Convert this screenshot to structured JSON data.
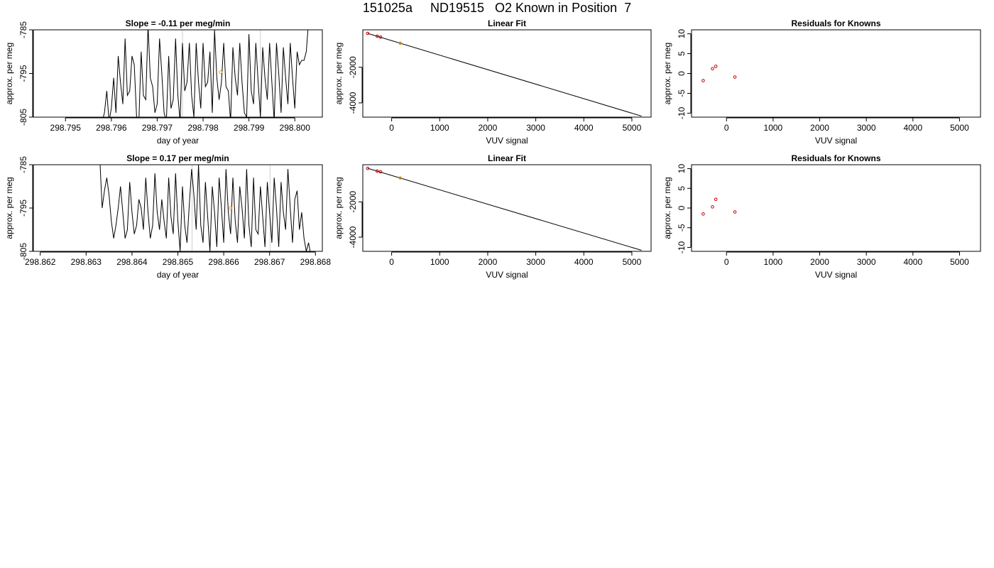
{
  "page": {
    "title": "151025a     ND19515   O2 Known in Position  7"
  },
  "chart_data": [
    {
      "type": "line",
      "title": "Slope =  -0.11  per meg/min",
      "xlabel": "day of year",
      "ylabel": "approx. per meg",
      "xlim": [
        298.7943,
        298.8006
      ],
      "ylim": [
        -805,
        -785
      ],
      "xticks": [
        298.795,
        298.796,
        298.797,
        298.798,
        298.799,
        298.8
      ],
      "xtick_labels": [
        "298.795",
        "298.796",
        "298.797",
        "298.798",
        "298.799",
        "298.800"
      ],
      "yticks": [
        -785,
        -795,
        -805
      ],
      "ytick_labels": [
        "-785",
        "-795",
        "-805"
      ],
      "vlines": [
        298.79755,
        298.79925
      ],
      "marker": {
        "x": 298.79838,
        "y": -794.7,
        "color": "#ffa500"
      },
      "series": [
        {
          "x": [
            298.7958,
            298.79585,
            298.7959,
            298.79595,
            298.796,
            298.79605,
            298.7961,
            298.79615,
            298.7962,
            298.79625,
            298.7963,
            298.79635,
            298.7964,
            298.79645,
            298.7965,
            298.79655,
            298.7966,
            298.79665,
            298.7967,
            298.79675,
            298.7968,
            298.79685,
            298.7969,
            298.79695,
            298.797,
            298.79705,
            298.7971,
            298.79715,
            298.7972,
            298.79725,
            298.7973,
            298.79735,
            298.7974,
            298.79745,
            298.7975,
            298.79755,
            298.7976,
            298.79765,
            298.7977,
            298.79775,
            298.7978,
            298.79785,
            298.7979,
            298.79795,
            298.798,
            298.79805,
            298.7981,
            298.79815,
            298.7982,
            298.79825,
            298.7983,
            298.79835,
            298.7984,
            298.79845,
            298.7985,
            298.79855,
            298.7986,
            298.79865,
            298.7987,
            298.79875,
            298.7988,
            298.79885,
            298.7989,
            298.79895,
            298.799,
            298.79905,
            298.7991,
            298.79915,
            298.7992,
            298.79925,
            298.7993,
            298.79935,
            298.7994,
            298.79945,
            298.7995,
            298.79955,
            298.7996,
            298.79965,
            298.7997,
            298.79975,
            298.7998,
            298.79985,
            298.7999,
            298.79995,
            298.8,
            298.80005,
            298.8001,
            298.80015,
            298.8002,
            298.80025,
            298.8003
          ],
          "y": [
            -806,
            -804,
            -799,
            -806,
            -803,
            -796,
            -804,
            -791,
            -797,
            -802,
            -787,
            -800,
            -799,
            -791,
            -793,
            -805,
            -806,
            -790,
            -800,
            -801,
            -784,
            -796,
            -798,
            -804,
            -802,
            -787,
            -795,
            -804,
            -806,
            -791,
            -803,
            -801,
            -787,
            -800,
            -806,
            -788,
            -799,
            -797,
            -788,
            -800,
            -805,
            -788,
            -797,
            -803,
            -788,
            -798,
            -797,
            -790,
            -804,
            -785,
            -796,
            -801,
            -797,
            -788,
            -798,
            -799,
            -806,
            -789,
            -796,
            -800,
            -788,
            -797,
            -804,
            -805,
            -786,
            -799,
            -802,
            -788,
            -797,
            -805,
            -789,
            -796,
            -801,
            -788,
            -797,
            -806,
            -788,
            -795,
            -804,
            -789,
            -796,
            -802,
            -788,
            -796,
            -803,
            -790,
            -793,
            -792,
            -792,
            -790,
            -783
          ]
        }
      ]
    },
    {
      "type": "scatter",
      "title": "Linear Fit",
      "xlabel": "VUV signal",
      "ylabel": "approx. per meg",
      "xlim": [
        -600,
        5400
      ],
      "ylim": [
        -4800,
        100
      ],
      "xticks": [
        0,
        1000,
        2000,
        3000,
        4000,
        5000
      ],
      "xtick_labels": [
        "0",
        "1000",
        "2000",
        "3000",
        "4000",
        "5000"
      ],
      "yticks": [
        -2000,
        -4000
      ],
      "ytick_labels": [
        "-2000",
        "-4000"
      ],
      "fit_line": {
        "x": [
          -500,
          5200
        ],
        "y": [
          -100,
          -4740
        ]
      },
      "points": [
        {
          "x": -500,
          "y": -100,
          "color": "#cc0000"
        },
        {
          "x": -300,
          "y": -260,
          "color": "#cc0000"
        },
        {
          "x": -230,
          "y": -310,
          "color": "#cc0000"
        },
        {
          "x": 180,
          "y": -650,
          "color": "#cc0000"
        },
        {
          "x": 180,
          "y": -650,
          "color": "#ffa500"
        }
      ]
    },
    {
      "type": "scatter",
      "title": "Residuals for Knowns",
      "xlabel": "VUV signal",
      "ylabel": "approx. per meg",
      "xlim": [
        -750,
        5450
      ],
      "ylim": [
        -11,
        11
      ],
      "xticks": [
        0,
        1000,
        2000,
        3000,
        4000,
        5000
      ],
      "xtick_labels": [
        "0",
        "1000",
        "2000",
        "3000",
        "4000",
        "5000"
      ],
      "yticks": [
        10,
        5,
        0,
        -5,
        -10
      ],
      "ytick_labels": [
        "10",
        "5",
        "0",
        "-5",
        "-10"
      ],
      "points": [
        {
          "x": -500,
          "y": -1.8,
          "color": "#cc0000"
        },
        {
          "x": -300,
          "y": 1.2,
          "color": "#cc0000"
        },
        {
          "x": -230,
          "y": 1.8,
          "color": "#cc0000"
        },
        {
          "x": 180,
          "y": -0.9,
          "color": "#cc0000"
        }
      ]
    },
    {
      "type": "line",
      "title": "Slope =  0.17  per meg/min",
      "xlabel": "day of year",
      "ylabel": "approx. per meg",
      "xlim": [
        298.86185,
        298.86815
      ],
      "ylim": [
        -805,
        -785
      ],
      "xticks": [
        298.862,
        298.863,
        298.864,
        298.865,
        298.866,
        298.867,
        298.868
      ],
      "xtick_labels": [
        "298.862",
        "298.863",
        "298.864",
        "298.865",
        "298.866",
        "298.867",
        "298.868"
      ],
      "yticks": [
        -785,
        -795,
        -805
      ],
      "ytick_labels": [
        "-785",
        "-795",
        "-805"
      ],
      "vlines": [
        298.86531,
        298.86701
      ],
      "marker": {
        "x": 298.86615,
        "y": -795,
        "color": "#ffa500"
      },
      "series": [
        {
          "x": [
            298.8633,
            298.86335,
            298.8634,
            298.86345,
            298.8635,
            298.86355,
            298.8636,
            298.86365,
            298.8637,
            298.86375,
            298.8638,
            298.86385,
            298.8639,
            298.86395,
            298.864,
            298.86405,
            298.8641,
            298.86415,
            298.8642,
            298.86425,
            298.8643,
            298.86435,
            298.8644,
            298.86445,
            298.8645,
            298.86455,
            298.8646,
            298.86465,
            298.8647,
            298.86475,
            298.8648,
            298.86485,
            298.8649,
            298.86495,
            298.865,
            298.86505,
            298.8651,
            298.86515,
            298.8652,
            298.86525,
            298.8653,
            298.86535,
            298.8654,
            298.86545,
            298.8655,
            298.86555,
            298.8656,
            298.86565,
            298.8657,
            298.86575,
            298.8658,
            298.86585,
            298.8659,
            298.86595,
            298.866,
            298.86605,
            298.8661,
            298.86615,
            298.8662,
            298.86625,
            298.8663,
            298.86635,
            298.8664,
            298.86645,
            298.8665,
            298.86655,
            298.8666,
            298.86665,
            298.8667,
            298.86675,
            298.8668,
            298.86685,
            298.8669,
            298.86695,
            298.867,
            298.86705,
            298.8671,
            298.86715,
            298.8672,
            298.86725,
            298.8673,
            298.86735,
            298.8674,
            298.86745,
            298.8675,
            298.86755,
            298.8676,
            298.86765,
            298.8677,
            298.86775,
            298.8678,
            298.86785,
            298.8679
          ],
          "y": [
            -784,
            -795,
            -791,
            -788,
            -792,
            -798,
            -802,
            -799,
            -795,
            -790,
            -796,
            -802,
            -800,
            -789,
            -796,
            -801,
            -799,
            -793,
            -795,
            -800,
            -788,
            -796,
            -802,
            -799,
            -787,
            -796,
            -800,
            -793,
            -798,
            -802,
            -788,
            -797,
            -801,
            -787,
            -798,
            -805,
            -790,
            -799,
            -803,
            -794,
            -786,
            -792,
            -800,
            -785,
            -799,
            -803,
            -789,
            -797,
            -805,
            -790,
            -796,
            -804,
            -788,
            -795,
            -803,
            -786,
            -796,
            -801,
            -788,
            -798,
            -803,
            -790,
            -795,
            -802,
            -786,
            -799,
            -804,
            -788,
            -800,
            -801,
            -790,
            -797,
            -804,
            -789,
            -796,
            -803,
            -788,
            -795,
            -804,
            -789,
            -796,
            -800,
            -786,
            -795,
            -803,
            -793,
            -791,
            -800,
            -796,
            -802,
            -805,
            -803,
            -806
          ]
        }
      ]
    },
    {
      "type": "scatter",
      "title": "Linear Fit",
      "xlabel": "VUV signal",
      "ylabel": "approx. per meg",
      "xlim": [
        -600,
        5400
      ],
      "ylim": [
        -4800,
        100
      ],
      "xticks": [
        0,
        1000,
        2000,
        3000,
        4000,
        5000
      ],
      "xtick_labels": [
        "0",
        "1000",
        "2000",
        "3000",
        "4000",
        "5000"
      ],
      "yticks": [
        -2000,
        -4000
      ],
      "ytick_labels": [
        "-2000",
        "-4000"
      ],
      "fit_line": {
        "x": [
          -500,
          5200
        ],
        "y": [
          -100,
          -4740
        ]
      },
      "points": [
        {
          "x": -500,
          "y": -110,
          "color": "#cc0000"
        },
        {
          "x": -300,
          "y": -260,
          "color": "#cc0000"
        },
        {
          "x": -230,
          "y": -300,
          "color": "#cc0000"
        },
        {
          "x": 180,
          "y": -650,
          "color": "#cc0000"
        },
        {
          "x": 180,
          "y": -650,
          "color": "#ffa500"
        }
      ]
    },
    {
      "type": "scatter",
      "title": "Residuals for Knowns",
      "xlabel": "VUV signal",
      "ylabel": "approx. per meg",
      "xlim": [
        -750,
        5450
      ],
      "ylim": [
        -11,
        11
      ],
      "xticks": [
        0,
        1000,
        2000,
        3000,
        4000,
        5000
      ],
      "xtick_labels": [
        "0",
        "1000",
        "2000",
        "3000",
        "4000",
        "5000"
      ],
      "yticks": [
        10,
        5,
        0,
        -5,
        -10
      ],
      "ytick_labels": [
        "10",
        "5",
        "0",
        "-5",
        "-10"
      ],
      "points": [
        {
          "x": -500,
          "y": -1.5,
          "color": "#cc0000"
        },
        {
          "x": -300,
          "y": 0.3,
          "color": "#cc0000"
        },
        {
          "x": -230,
          "y": 2.2,
          "color": "#cc0000"
        },
        {
          "x": 180,
          "y": -1.0,
          "color": "#cc0000"
        }
      ]
    }
  ]
}
